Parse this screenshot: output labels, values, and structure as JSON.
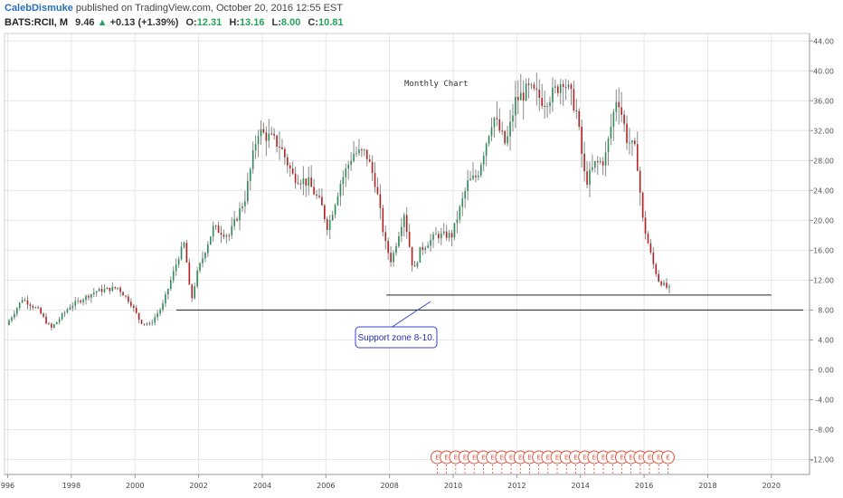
{
  "header": {
    "author": "CalebDismuke",
    "published": "published on TradingView.com, October 20, 2016 12:55 EST",
    "symbol": "BATS:RCII, M",
    "last": "9.46",
    "arrow": "▲",
    "change": "+0.13 (+1.39%)",
    "o_label": "O:",
    "o_value": "12.31",
    "h_label": "H:",
    "h_value": "13.16",
    "l_label": "L:",
    "l_value": "8.00",
    "c_label": "C:",
    "c_value": "10.81"
  },
  "colors": {
    "up": "#2e8b57",
    "down": "#b22222",
    "wick": "#888888",
    "grid": "#e6e6e6",
    "callout": "#3344cc",
    "earnings": "#e0503a"
  },
  "chart_data": {
    "type": "candlestick",
    "timeframe": "monthly",
    "annotation": "Monthly Chart",
    "callout": "Support zone 8-10.",
    "ylim": [
      -14,
      45
    ],
    "y_ticks": [
      "44.00",
      "40.00",
      "36.00",
      "32.00",
      "28.00",
      "24.00",
      "20.00",
      "16.00",
      "12.00",
      "8.00",
      "4.00",
      "0.00",
      "-4.00",
      "-8.00",
      "-12.00"
    ],
    "x_ticks": [
      "996",
      "1998",
      "2000",
      "2002",
      "2004",
      "2006",
      "2008",
      "2010",
      "2012",
      "2014",
      "2016",
      "2018",
      "2020"
    ],
    "support_lines": [
      {
        "price": 8.0,
        "from": 2001.3,
        "to": 2021.0
      },
      {
        "price": 10.0,
        "from": 2007.9,
        "to": 2020.0
      }
    ],
    "earnings_marker_label": "E",
    "earnings_markers_range": [
      2009.5,
      2016.75
    ],
    "earnings_markers_count": 26,
    "price_path_keypoints": [
      [
        1996.0,
        6.0
      ],
      [
        1996.5,
        9.5
      ],
      [
        1997.0,
        8.0
      ],
      [
        1997.4,
        5.5
      ],
      [
        1998.0,
        8.5
      ],
      [
        1998.8,
        10.5
      ],
      [
        1999.5,
        11.0
      ],
      [
        1999.9,
        9.0
      ],
      [
        2000.2,
        6.5
      ],
      [
        2000.5,
        6.0
      ],
      [
        2000.9,
        8.5
      ],
      [
        2001.4,
        15.0
      ],
      [
        2001.6,
        17.0
      ],
      [
        2001.8,
        9.0
      ],
      [
        2002.0,
        13.0
      ],
      [
        2002.5,
        19.0
      ],
      [
        2003.0,
        18.0
      ],
      [
        2003.5,
        23.0
      ],
      [
        2003.9,
        32.0
      ],
      [
        2004.3,
        31.0
      ],
      [
        2004.6,
        30.0
      ],
      [
        2005.0,
        26.0
      ],
      [
        2005.5,
        25.0
      ],
      [
        2005.9,
        22.0
      ],
      [
        2006.1,
        19.0
      ],
      [
        2006.5,
        25.0
      ],
      [
        2006.9,
        29.0
      ],
      [
        2007.3,
        29.0
      ],
      [
        2007.6,
        25.0
      ],
      [
        2007.9,
        17.0
      ],
      [
        2008.1,
        14.5
      ],
      [
        2008.5,
        21.0
      ],
      [
        2008.8,
        13.0
      ],
      [
        2009.0,
        16.0
      ],
      [
        2009.5,
        18.0
      ],
      [
        2010.0,
        18.0
      ],
      [
        2010.5,
        25.0
      ],
      [
        2010.8,
        26.0
      ],
      [
        2011.3,
        34.0
      ],
      [
        2011.7,
        30.0
      ],
      [
        2012.0,
        36.0
      ],
      [
        2012.4,
        37.5
      ],
      [
        2012.9,
        36.0
      ],
      [
        2013.2,
        37.0
      ],
      [
        2013.5,
        39.0
      ],
      [
        2013.9,
        35.0
      ],
      [
        2014.2,
        25.0
      ],
      [
        2014.5,
        27.5
      ],
      [
        2014.8,
        28.0
      ],
      [
        2015.2,
        37.0
      ],
      [
        2015.5,
        31.0
      ],
      [
        2015.8,
        29.0
      ],
      [
        2016.0,
        20.0
      ],
      [
        2016.3,
        14.5
      ],
      [
        2016.5,
        12.0
      ],
      [
        2016.8,
        10.8
      ]
    ],
    "grid": true,
    "y_axis_side": "right"
  }
}
